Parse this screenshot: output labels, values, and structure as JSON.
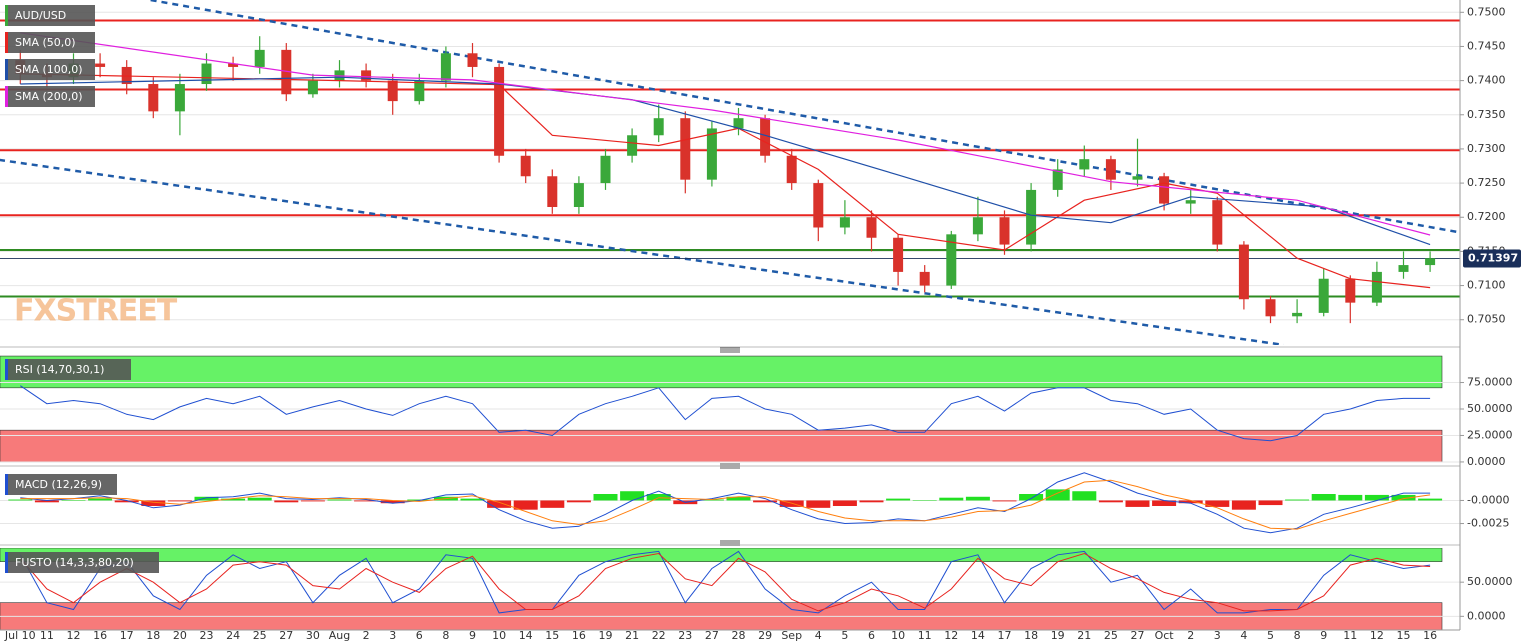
{
  "chart_data": [
    {
      "type": "candlestick",
      "title": "AUD/USD",
      "watermark": "FXSTREET",
      "categories": [
        "Jul 10",
        "11",
        "12",
        "16",
        "17",
        "18",
        "20",
        "23",
        "24",
        "25",
        "27",
        "30",
        "Aug",
        "2",
        "3",
        "6",
        "8",
        "9",
        "10",
        "14",
        "15",
        "16",
        "19",
        "21",
        "22",
        "23",
        "27",
        "28",
        "29",
        "Sep",
        "4",
        "5",
        "6",
        "10",
        "11",
        "12",
        "14",
        "17",
        "18",
        "19",
        "21",
        "25",
        "27",
        "Oct",
        "2",
        "3",
        "4",
        "5",
        "8",
        "9",
        "11",
        "12",
        "15",
        "16"
      ],
      "open": [
        0.743,
        0.741,
        0.7405,
        0.7425,
        0.742,
        0.7395,
        0.7355,
        0.7395,
        0.7425,
        0.742,
        0.7445,
        0.738,
        0.74,
        0.7415,
        0.74,
        0.737,
        0.74,
        0.744,
        0.742,
        0.729,
        0.726,
        0.7215,
        0.725,
        0.729,
        0.732,
        0.7345,
        0.7255,
        0.733,
        0.7345,
        0.729,
        0.725,
        0.7185,
        0.72,
        0.717,
        0.712,
        0.71,
        0.7175,
        0.72,
        0.716,
        0.724,
        0.727,
        0.7285,
        0.7255,
        0.726,
        0.722,
        0.7225,
        0.716,
        0.708,
        0.7055,
        0.706,
        0.711,
        0.7075,
        0.712,
        0.713
      ],
      "high": [
        0.7445,
        0.7425,
        0.744,
        0.744,
        0.743,
        0.7405,
        0.741,
        0.744,
        0.7435,
        0.7465,
        0.7455,
        0.741,
        0.743,
        0.7425,
        0.741,
        0.741,
        0.745,
        0.7455,
        0.7425,
        0.73,
        0.727,
        0.726,
        0.73,
        0.733,
        0.7365,
        0.7355,
        0.734,
        0.736,
        0.735,
        0.73,
        0.7255,
        0.7225,
        0.721,
        0.7175,
        0.713,
        0.718,
        0.723,
        0.721,
        0.725,
        0.7285,
        0.7305,
        0.729,
        0.7315,
        0.7265,
        0.724,
        0.723,
        0.7165,
        0.7085,
        0.708,
        0.7125,
        0.7115,
        0.7135,
        0.715,
        0.715
      ],
      "low": [
        0.7395,
        0.739,
        0.7395,
        0.7405,
        0.738,
        0.7345,
        0.732,
        0.7385,
        0.74,
        0.741,
        0.737,
        0.7375,
        0.739,
        0.739,
        0.735,
        0.7365,
        0.739,
        0.7405,
        0.728,
        0.725,
        0.7205,
        0.7205,
        0.724,
        0.728,
        0.731,
        0.7235,
        0.7245,
        0.732,
        0.728,
        0.724,
        0.7165,
        0.7175,
        0.715,
        0.71,
        0.709,
        0.7095,
        0.7165,
        0.7145,
        0.715,
        0.723,
        0.726,
        0.724,
        0.7245,
        0.721,
        0.7205,
        0.715,
        0.7065,
        0.7045,
        0.7045,
        0.7055,
        0.7045,
        0.707,
        0.711,
        0.712
      ],
      "close": [
        0.741,
        0.7405,
        0.7425,
        0.742,
        0.7395,
        0.7355,
        0.7395,
        0.7425,
        0.742,
        0.7445,
        0.738,
        0.74,
        0.7415,
        0.74,
        0.737,
        0.74,
        0.744,
        0.742,
        0.729,
        0.726,
        0.7215,
        0.725,
        0.729,
        0.732,
        0.7345,
        0.7255,
        0.733,
        0.7345,
        0.729,
        0.725,
        0.7185,
        0.72,
        0.717,
        0.712,
        0.71,
        0.7175,
        0.72,
        0.716,
        0.724,
        0.727,
        0.7285,
        0.7255,
        0.726,
        0.722,
        0.7225,
        0.716,
        0.708,
        0.7055,
        0.706,
        0.711,
        0.7075,
        0.712,
        0.713,
        0.714
      ],
      "up_color": "#3aa83a",
      "down_color": "#d9322b",
      "ylim": [
        0.7013,
        0.7518
      ],
      "yticks": [
        {
          "value": 0.705,
          "label": "0.7050"
        },
        {
          "value": 0.71,
          "label": "0.7100"
        },
        {
          "value": 0.715,
          "label": "0.7150"
        },
        {
          "value": 0.72,
          "label": "0.7200"
        },
        {
          "value": 0.725,
          "label": "0.7250"
        },
        {
          "value": 0.73,
          "label": "0.7300"
        },
        {
          "value": 0.735,
          "label": "0.7350"
        },
        {
          "value": 0.74,
          "label": "0.7400"
        },
        {
          "value": 0.745,
          "label": "0.7450"
        },
        {
          "value": 0.75,
          "label": "0.7500"
        }
      ],
      "grid": true,
      "last_price": 0.71397,
      "last_price_color": "#1a2f5a",
      "levels": [
        {
          "value": 0.7488,
          "color": "#e8231f"
        },
        {
          "value": 0.7387,
          "color": "#e8231f"
        },
        {
          "value": 0.7298,
          "color": "#e8231f"
        },
        {
          "value": 0.7203,
          "color": "#e8231f"
        },
        {
          "value": 0.7152,
          "color": "#2e8b22"
        },
        {
          "value": 0.7084,
          "color": "#2e8b22"
        }
      ],
      "trendlines": [
        {
          "x": [
            4.9,
            54.1
          ],
          "y": [
            0.7518,
            0.7178
          ]
        },
        {
          "x": [
            -0.8,
            47.5
          ],
          "y": [
            0.7284,
            0.7013
          ]
        }
      ],
      "trend_color": "#1f5ba8",
      "series": [
        {
          "name": "SMA (50,0)",
          "color": "#e8231f",
          "x": [
            0,
            6,
            12,
            18,
            20,
            24,
            27,
            30,
            33,
            37,
            40,
            43,
            45,
            48,
            50,
            53
          ],
          "values": [
            0.741,
            0.7405,
            0.74,
            0.7394,
            0.732,
            0.7305,
            0.733,
            0.727,
            0.7175,
            0.7152,
            0.7225,
            0.725,
            0.7235,
            0.714,
            0.711,
            0.7097
          ]
        },
        {
          "name": "SMA (100,0)",
          "color": "#1f4fa8",
          "x": [
            0,
            12,
            18,
            23,
            28,
            33,
            38,
            41,
            44,
            49,
            53
          ],
          "values": [
            0.7395,
            0.7405,
            0.7395,
            0.7372,
            0.732,
            0.7262,
            0.7203,
            0.7192,
            0.723,
            0.7215,
            0.716
          ]
        },
        {
          "name": "SMA (200,0)",
          "color": "#e020e0",
          "x": [
            0,
            11,
            17,
            26,
            33,
            41,
            48,
            53
          ],
          "values": [
            0.747,
            0.7408,
            0.7401,
            0.7357,
            0.7313,
            0.7252,
            0.7225,
            0.7174
          ]
        }
      ]
    },
    {
      "type": "line",
      "title": "RSI (14,70,30,1)",
      "ylim": [
        -1,
        101
      ],
      "yticks": [
        {
          "value": 0,
          "label": "0.0000"
        },
        {
          "value": 25,
          "label": "25.0000"
        },
        {
          "value": 50,
          "label": "50.0000"
        },
        {
          "value": 75,
          "label": "75.0000"
        }
      ],
      "upper_zone": [
        70,
        100
      ],
      "lower_zone": [
        0,
        30
      ],
      "upper_color": "#66f266",
      "lower_color": "#f77a7a",
      "series": [
        {
          "color": "#1f4fd1",
          "values": [
            72,
            55,
            58,
            55,
            45,
            40,
            52,
            60,
            55,
            62,
            45,
            52,
            58,
            50,
            44,
            55,
            62,
            55,
            28,
            30,
            25,
            45,
            55,
            62,
            70,
            40,
            60,
            62,
            50,
            45,
            30,
            32,
            35,
            28,
            28,
            55,
            62,
            48,
            65,
            70,
            70,
            58,
            55,
            45,
            50,
            30,
            22,
            20,
            25,
            45,
            50,
            58,
            60,
            60
          ]
        }
      ]
    },
    {
      "type": "macd",
      "title": "MACD (12,26,9)",
      "ylim": [
        -0.0045,
        0.0033
      ],
      "yticks": [
        {
          "value": 0,
          "label": "-0.0000"
        },
        -0.0025
      ],
      "macd": {
        "color": "#1f4fd1",
        "values": [
          0.0003,
          0.0,
          0.0002,
          0.0005,
          0.0,
          -0.0008,
          -0.0005,
          0.0003,
          0.0004,
          0.0008,
          0.0002,
          0.0001,
          0.0003,
          0.0001,
          -0.0003,
          0.0,
          0.0006,
          0.0007,
          -0.001,
          -0.0022,
          -0.003,
          -0.0028,
          -0.0015,
          0.0,
          0.001,
          -0.0002,
          0.0002,
          0.0008,
          0.0002,
          -0.001,
          -0.002,
          -0.0025,
          -0.0024,
          -0.002,
          -0.0022,
          -0.0015,
          -0.0008,
          -0.0012,
          0.0002,
          0.002,
          0.003,
          0.002,
          0.0008,
          0.0,
          -0.0003,
          -0.0015,
          -0.003,
          -0.0035,
          -0.003,
          -0.0015,
          -0.0008,
          0.0,
          0.0008,
          0.0008
        ]
      },
      "signal": {
        "color": "#ff7f0e",
        "values": [
          0.0002,
          0.0002,
          0.0002,
          0.0003,
          0.0002,
          -0.0002,
          -0.0004,
          -0.0001,
          0.0002,
          0.0005,
          0.0004,
          0.0002,
          0.0002,
          0.0002,
          0.0,
          -0.0001,
          0.0002,
          0.0005,
          -0.0002,
          -0.0012,
          -0.0022,
          -0.0026,
          -0.0022,
          -0.001,
          0.0003,
          0.0002,
          0.0001,
          0.0004,
          0.0004,
          -0.0003,
          -0.0012,
          -0.0019,
          -0.0022,
          -0.0022,
          -0.0022,
          -0.0018,
          -0.0012,
          -0.0011,
          -0.0005,
          0.0008,
          0.002,
          0.0022,
          0.0015,
          0.0006,
          0.0,
          -0.0008,
          -0.002,
          -0.003,
          -0.0031,
          -0.0022,
          -0.0014,
          -0.0006,
          0.0002,
          0.0006
        ]
      },
      "histogram": {
        "up_color": "#22e022",
        "down_color": "#e8231f",
        "values": [
          0.0001,
          -0.0002,
          0,
          0.0002,
          -0.0002,
          -0.0006,
          -0.0001,
          0.0004,
          0.0002,
          0.0003,
          -0.0002,
          -0.0001,
          0.0001,
          -0.0001,
          -0.0003,
          0.0001,
          0.0004,
          0.0002,
          -0.0008,
          -0.001,
          -0.0008,
          -0.0002,
          0.0007,
          0.001,
          0.0007,
          -0.0004,
          0.0001,
          0.0004,
          -0.0002,
          -0.0007,
          -0.0008,
          -0.0006,
          -0.0002,
          0.0002,
          0,
          0.0003,
          0.0004,
          -0.0001,
          0.0007,
          0.0012,
          0.001,
          -0.0002,
          -0.0007,
          -0.0006,
          -0.0003,
          -0.0007,
          -0.001,
          -0.0005,
          0.0001,
          0.0007,
          0.0006,
          0.0006,
          0.0006,
          0.0002
        ]
      }
    },
    {
      "type": "line",
      "title": "FUSTO (14,3,3,80,20)",
      "ylim": [
        -20,
        100
      ],
      "yticks": [
        {
          "value": 0,
          "label": "0.0000"
        },
        {
          "value": 50,
          "label": "50.0000"
        }
      ],
      "upper_zone": [
        80,
        100
      ],
      "lower_zone": [
        -20,
        20
      ],
      "upper_color": "#66f266",
      "lower_color": "#f77a7a",
      "series": [
        {
          "color": "#1f4fd1",
          "values": [
            90,
            20,
            10,
            70,
            80,
            30,
            10,
            60,
            90,
            70,
            80,
            20,
            60,
            85,
            20,
            40,
            90,
            85,
            5,
            10,
            10,
            60,
            80,
            90,
            95,
            20,
            70,
            95,
            40,
            10,
            5,
            30,
            50,
            10,
            10,
            80,
            90,
            20,
            70,
            90,
            95,
            50,
            60,
            10,
            40,
            5,
            5,
            10,
            10,
            60,
            90,
            80,
            70,
            75
          ]
        },
        {
          "color": "#e8231f",
          "values": [
            85,
            40,
            20,
            50,
            70,
            50,
            20,
            40,
            75,
            80,
            75,
            45,
            40,
            70,
            50,
            35,
            70,
            88,
            40,
            10,
            10,
            30,
            70,
            85,
            92,
            55,
            45,
            85,
            65,
            25,
            8,
            20,
            40,
            30,
            12,
            40,
            85,
            55,
            45,
            80,
            92,
            70,
            55,
            35,
            25,
            20,
            8,
            8,
            10,
            30,
            75,
            85,
            75,
            73
          ]
        }
      ]
    }
  ]
}
